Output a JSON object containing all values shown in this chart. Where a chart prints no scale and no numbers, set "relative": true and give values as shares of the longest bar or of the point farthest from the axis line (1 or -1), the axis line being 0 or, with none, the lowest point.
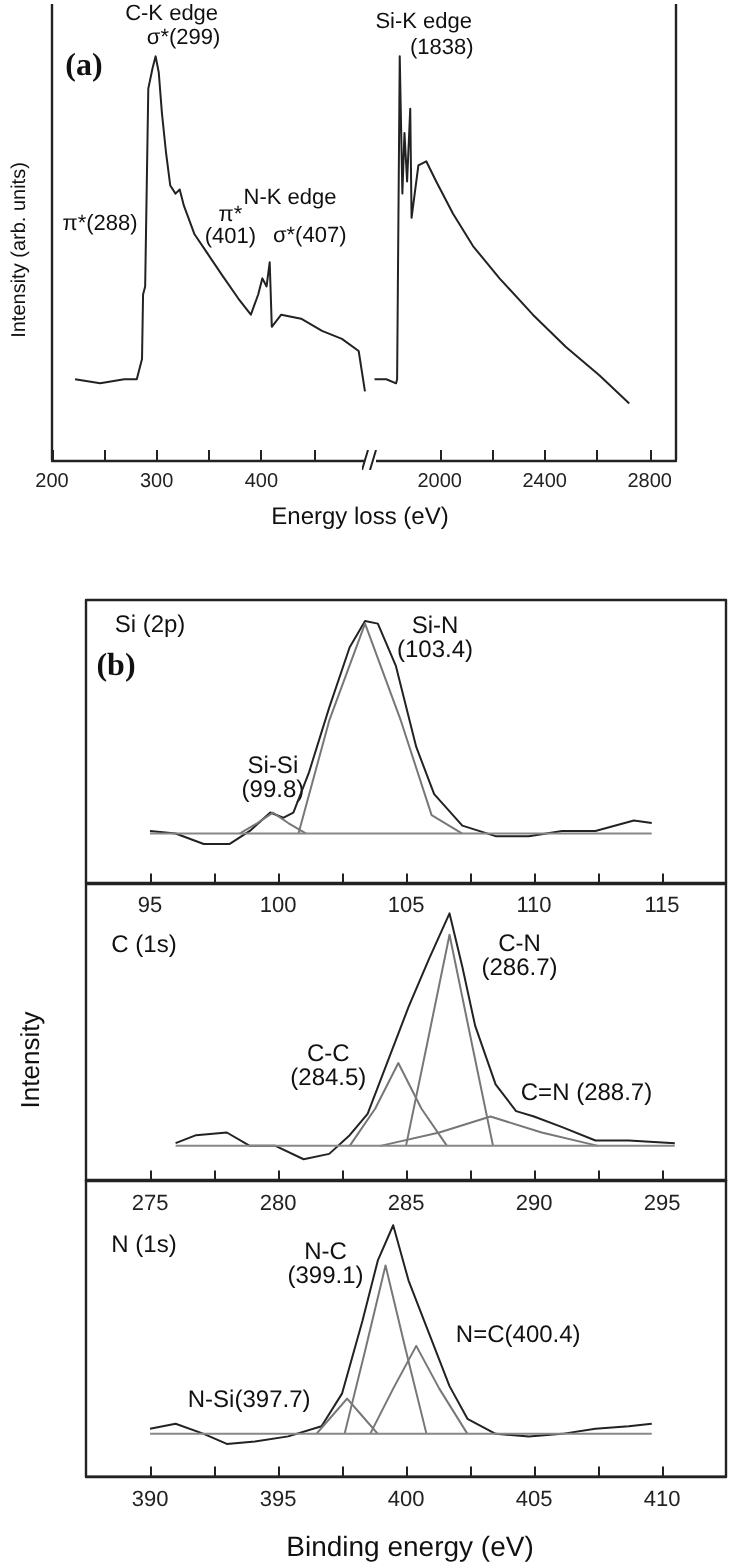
{
  "chart_data": [
    {
      "type": "line",
      "relative": true,
      "marker": "none",
      "ylabel": "Intensity (arb. units)",
      "xlabel": "Energy loss (eV)",
      "xlim": [
        200,
        500
      ],
      "xticks": [
        200,
        {
          "value": 250,
          "label": null
        },
        300,
        {
          "value": 350,
          "label": null
        },
        400,
        {
          "value": 450,
          "label": null
        }
      ],
      "series": [
        {
          "color": "#222222",
          "x": [
            222,
            246,
            269,
            281,
            286,
            287,
            289,
            292,
            296,
            299,
            302,
            305,
            309,
            313,
            318,
            322,
            326,
            336,
            349,
            362,
            378,
            390,
            397,
            401,
            405,
            408,
            410,
            419,
            438,
            458,
            477,
            493,
            499
          ],
          "values": [
            0.2,
            0.19,
            0.2,
            0.2,
            0.25,
            0.41,
            0.43,
            0.92,
            0.97,
            1,
            0.96,
            0.86,
            0.76,
            0.68,
            0.66,
            0.67,
            0.63,
            0.56,
            0.51,
            0.46,
            0.4,
            0.36,
            0.41,
            0.45,
            0.43,
            0.49,
            0.33,
            0.36,
            0.35,
            0.32,
            0.3,
            0.27,
            0.17
          ]
        }
      ],
      "annotations": [
        "(a)",
        {
          "text": "C-K edge",
          "x": 299,
          "y": 1
        },
        {
          "text": "σ*(299)",
          "x": 299,
          "y": 1
        },
        {
          "text": "π*(288)",
          "x": 288,
          "y": 0.43
        },
        "N-K edge",
        {
          "text": "π*\n(401)",
          "x": 401,
          "y": 0.45
        },
        {
          "text": "σ*(407)",
          "x": 408,
          "y": 0.49
        }
      ]
    },
    {
      "type": "line",
      "relative": true,
      "marker": "none",
      "xlim": [
        1750,
        2900
      ],
      "xticks": [
        2000,
        {
          "value": 2200,
          "label": null
        },
        2400,
        {
          "value": 2600,
          "label": null
        },
        2800
      ],
      "series": [
        {
          "color": "#222222",
          "x": [
            1752,
            1797,
            1834,
            1838,
            1848,
            1858,
            1866,
            1876,
            1888,
            1893,
            1919,
            1949,
            1987,
            2051,
            2127,
            2228,
            2355,
            2481,
            2608,
            2722
          ],
          "values": [
            0.2,
            0.2,
            0.19,
            0.2,
            1,
            0.66,
            0.81,
            0.69,
            0.87,
            0.6,
            0.73,
            0.74,
            0.69,
            0.61,
            0.53,
            0.45,
            0.36,
            0.28,
            0.21,
            0.14
          ]
        }
      ],
      "annotations": [
        {
          "text": "Si-K edge",
          "x": 1848,
          "y": 1
        },
        {
          "text": "(1838)",
          "x": 1848,
          "y": 1
        }
      ]
    },
    {
      "type": "line",
      "relative": true,
      "marker": "none",
      "xlim": [
        92.5,
        117.5
      ],
      "xticks": [
        95,
        {
          "value": 97.5,
          "label": null
        },
        100,
        {
          "value": 102.5,
          "label": null
        },
        105,
        {
          "value": 107.5,
          "label": null
        },
        110,
        {
          "value": 112.5,
          "label": null
        },
        115
      ],
      "series": [
        {
          "color": "#222222",
          "x": [
            95,
            96,
            97.1,
            98.1,
            98.9,
            99.7,
            100.2,
            100.6,
            101.2,
            102,
            102.8,
            103.4,
            103.9,
            104.6,
            105.4,
            106.1,
            107.2,
            108.5,
            109.8,
            111.1,
            112.4,
            113.9,
            114.6
          ],
          "values": [
            0.2,
            0.19,
            0.15,
            0.15,
            0.2,
            0.27,
            0.25,
            0.27,
            0.42,
            0.67,
            0.9,
            1,
            0.99,
            0.83,
            0.52,
            0.34,
            0.22,
            0.18,
            0.18,
            0.2,
            0.2,
            0.24,
            0.23
          ]
        },
        {
          "color": "#777777",
          "x": [
            98.5,
            99.2,
            99.8,
            100.4,
            101.1
          ],
          "values": [
            0.19,
            0.23,
            0.27,
            0.23,
            0.19
          ]
        },
        {
          "color": "#777777",
          "x": [
            100.8,
            102,
            103.4,
            104.8,
            106,
            107.2
          ],
          "values": [
            0.19,
            0.62,
            0.99,
            0.62,
            0.26,
            0.19
          ]
        },
        {
          "color": "#888888",
          "x": [
            95,
            114.6
          ],
          "values": [
            0.19,
            0.19
          ]
        }
      ],
      "annotations": [
        "Si (2p)",
        "(b)",
        {
          "text": "Si-Si\n(99.8)",
          "x": 99.8,
          "y": 0.27
        },
        {
          "text": "Si-N\n(103.4)",
          "x": 103.4,
          "y": 1
        }
      ]
    },
    {
      "type": "line",
      "relative": true,
      "marker": "none",
      "ylabel": "Intensity",
      "xlim": [
        272.5,
        297.5
      ],
      "xticks": [
        275,
        {
          "value": 277.5,
          "label": null
        },
        280,
        {
          "value": 282.5,
          "label": null
        },
        285,
        {
          "value": 287.5,
          "label": null
        },
        290,
        {
          "value": 292.5,
          "label": null
        },
        295
      ],
      "series": [
        {
          "color": "#222222",
          "x": [
            276,
            276.8,
            278,
            278.9,
            279.9,
            281,
            282,
            282.8,
            283.5,
            284.3,
            285.1,
            285.9,
            286.7,
            287.2,
            287.7,
            288.5,
            289.3,
            290,
            291.1,
            292.4,
            293.7,
            295.5
          ],
          "values": [
            0.14,
            0.17,
            0.18,
            0.13,
            0.13,
            0.08,
            0.1,
            0.17,
            0.25,
            0.45,
            0.65,
            0.83,
            1,
            0.8,
            0.58,
            0.36,
            0.26,
            0.24,
            0.2,
            0.15,
            0.15,
            0.14
          ]
        },
        {
          "color": "#777777",
          "x": [
            282.8,
            283.8,
            284.7,
            285.6,
            286.6
          ],
          "values": [
            0.13,
            0.27,
            0.44,
            0.27,
            0.13
          ]
        },
        {
          "color": "#777777",
          "x": [
            285,
            285.8,
            286.7,
            287.6,
            288.4
          ],
          "values": [
            0.13,
            0.5,
            0.92,
            0.5,
            0.13
          ]
        },
        {
          "color": "#777777",
          "x": [
            284,
            286.3,
            288.3,
            290.3,
            292.5
          ],
          "values": [
            0.13,
            0.18,
            0.24,
            0.18,
            0.13
          ]
        },
        {
          "color": "#888888",
          "x": [
            276,
            295.5
          ],
          "values": [
            0.13,
            0.13
          ]
        }
      ],
      "annotations": [
        "C (1s)",
        {
          "text": "C-N\n(286.7)",
          "x": 286.7,
          "y": 1
        },
        {
          "text": "C-C\n(284.5)",
          "x": 284.7,
          "y": 0.44
        },
        {
          "text": "C=N (288.7)",
          "x": 288.3,
          "y": 0.24
        }
      ]
    },
    {
      "type": "line",
      "relative": true,
      "marker": "none",
      "xlabel": "Binding energy (eV)",
      "xlim": [
        387.5,
        412.5
      ],
      "xticks": [
        390,
        {
          "value": 392.5,
          "label": null
        },
        395,
        {
          "value": 397.5,
          "label": null
        },
        400,
        {
          "value": 402.5,
          "label": null
        },
        405,
        {
          "value": 407.5,
          "label": null
        },
        410
      ],
      "series": [
        {
          "color": "#222222",
          "x": [
            390,
            391,
            392.1,
            393,
            394.1,
            395.4,
            396.7,
            397.5,
            398.3,
            398.9,
            399.5,
            400.1,
            400.9,
            401.7,
            402.4,
            403.5,
            404.8,
            406.1,
            407.4,
            408.7,
            409.6
          ],
          "values": [
            0.19,
            0.21,
            0.17,
            0.13,
            0.14,
            0.16,
            0.2,
            0.33,
            0.62,
            0.86,
            1,
            0.78,
            0.57,
            0.36,
            0.23,
            0.17,
            0.16,
            0.17,
            0.19,
            0.2,
            0.21
          ]
        },
        {
          "color": "#777777",
          "x": [
            396.5,
            397.1,
            397.7,
            398.3,
            398.9
          ],
          "values": [
            0.17,
            0.24,
            0.31,
            0.24,
            0.17
          ]
        },
        {
          "color": "#777777",
          "x": [
            397.6,
            398.4,
            399.2,
            400,
            400.8
          ],
          "values": [
            0.17,
            0.5,
            0.84,
            0.5,
            0.17
          ]
        },
        {
          "color": "#777777",
          "x": [
            398.6,
            399.5,
            400.4,
            401.3,
            402.4
          ],
          "values": [
            0.17,
            0.35,
            0.52,
            0.35,
            0.17
          ]
        },
        {
          "color": "#888888",
          "x": [
            390,
            409.6
          ],
          "values": [
            0.17,
            0.17
          ]
        }
      ],
      "annotations": [
        "N (1s)",
        {
          "text": "N-C\n(399.1)",
          "x": 399.2,
          "y": 0.84
        },
        {
          "text": "N=C(400.4)",
          "x": 400.4,
          "y": 0.52
        },
        {
          "text": "N-Si(397.7)",
          "x": 397.7,
          "y": 0.31
        }
      ]
    }
  ]
}
